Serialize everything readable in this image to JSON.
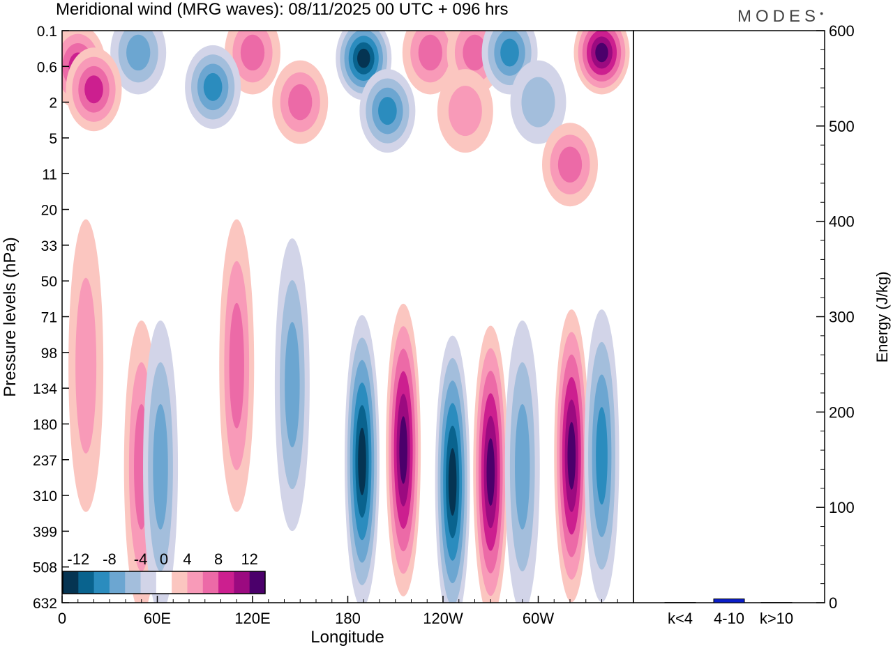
{
  "chart_data": [
    {
      "type": "heatmap",
      "title": "Meridional wind (MRG waves):  08/11/2025  00 UTC  + 096 hrs",
      "xlabel": "Longitude",
      "ylabel": "Pressure levels (hPa)",
      "x_ticks": [
        "0",
        "60E",
        "120E",
        "180",
        "120W",
        "60W"
      ],
      "x_range": [
        0,
        360
      ],
      "y_ticks": [
        "0.1",
        "0.6",
        "2",
        "5",
        "11",
        "20",
        "33",
        "50",
        "71",
        "98",
        "134",
        "180",
        "237",
        "310",
        "399",
        "508",
        "632"
      ],
      "colorbar": {
        "labels": [
          "-12",
          "-8",
          "-4",
          "0",
          "4",
          "8",
          "12"
        ],
        "levels": [
          -14,
          -12,
          -10,
          -8,
          -6,
          -4,
          -2,
          2,
          4,
          6,
          8,
          10,
          12,
          14
        ],
        "colors": [
          "#053452",
          "#09638e",
          "#2b8cbe",
          "#6ca6d1",
          "#a3bedc",
          "#d2d4e8",
          "#ffffff",
          "#fbc6c0",
          "#f89ab8",
          "#ec6aa7",
          "#cc1f8f",
          "#9b0a80",
          "#4b006b"
        ]
      },
      "features": [
        {
          "lon": 10,
          "level": 0.6,
          "value": 8
        },
        {
          "lon": 48,
          "level": 0.3,
          "value": -6
        },
        {
          "lon": 120,
          "level": 0.3,
          "value": 6
        },
        {
          "lon": 190,
          "level": 0.4,
          "value": -14
        },
        {
          "lon": 232,
          "level": 0.3,
          "value": 6
        },
        {
          "lon": 260,
          "level": 0.3,
          "value": 7
        },
        {
          "lon": 282,
          "level": 0.3,
          "value": -9
        },
        {
          "lon": 340,
          "level": 0.3,
          "value": 14
        },
        {
          "lon": 20,
          "level": 1.3,
          "value": 9
        },
        {
          "lon": 95,
          "level": 1.2,
          "value": -8
        },
        {
          "lon": 150,
          "level": 2,
          "value": 7
        },
        {
          "lon": 205,
          "level": 2.5,
          "value": -9
        },
        {
          "lon": 254,
          "level": 2.5,
          "value": 4
        },
        {
          "lon": 300,
          "level": 2,
          "value": -5
        },
        {
          "lon": 320,
          "level": 9,
          "value": 6
        },
        {
          "lon": 15,
          "level": 110,
          "value": 5
        },
        {
          "lon": 50,
          "level": 250,
          "value": 7
        },
        {
          "lon": 62,
          "level": 250,
          "value": -6
        },
        {
          "lon": 110,
          "level": 110,
          "value": 6
        },
        {
          "lon": 145,
          "level": 130,
          "value": -6
        },
        {
          "lon": 189,
          "level": 240,
          "value": -14
        },
        {
          "lon": 215,
          "level": 220,
          "value": 14
        },
        {
          "lon": 246,
          "level": 280,
          "value": -15
        },
        {
          "lon": 270,
          "level": 260,
          "value": 14
        },
        {
          "lon": 290,
          "level": 250,
          "value": -7
        },
        {
          "lon": 321,
          "level": 230,
          "value": 14
        },
        {
          "lon": 340,
          "level": 230,
          "value": -9
        }
      ]
    },
    {
      "type": "bar",
      "ylabel": "Energy (J/kg)",
      "categories": [
        "k<4",
        "4-10",
        "k>10"
      ],
      "values": [
        0.3,
        4,
        0.3
      ],
      "ylim": [
        0,
        600
      ],
      "y_ticks": [
        "0",
        "100",
        "200",
        "300",
        "400",
        "500",
        "600"
      ],
      "bar_color": "#0a1ec8"
    }
  ],
  "logo_text": "MODES"
}
